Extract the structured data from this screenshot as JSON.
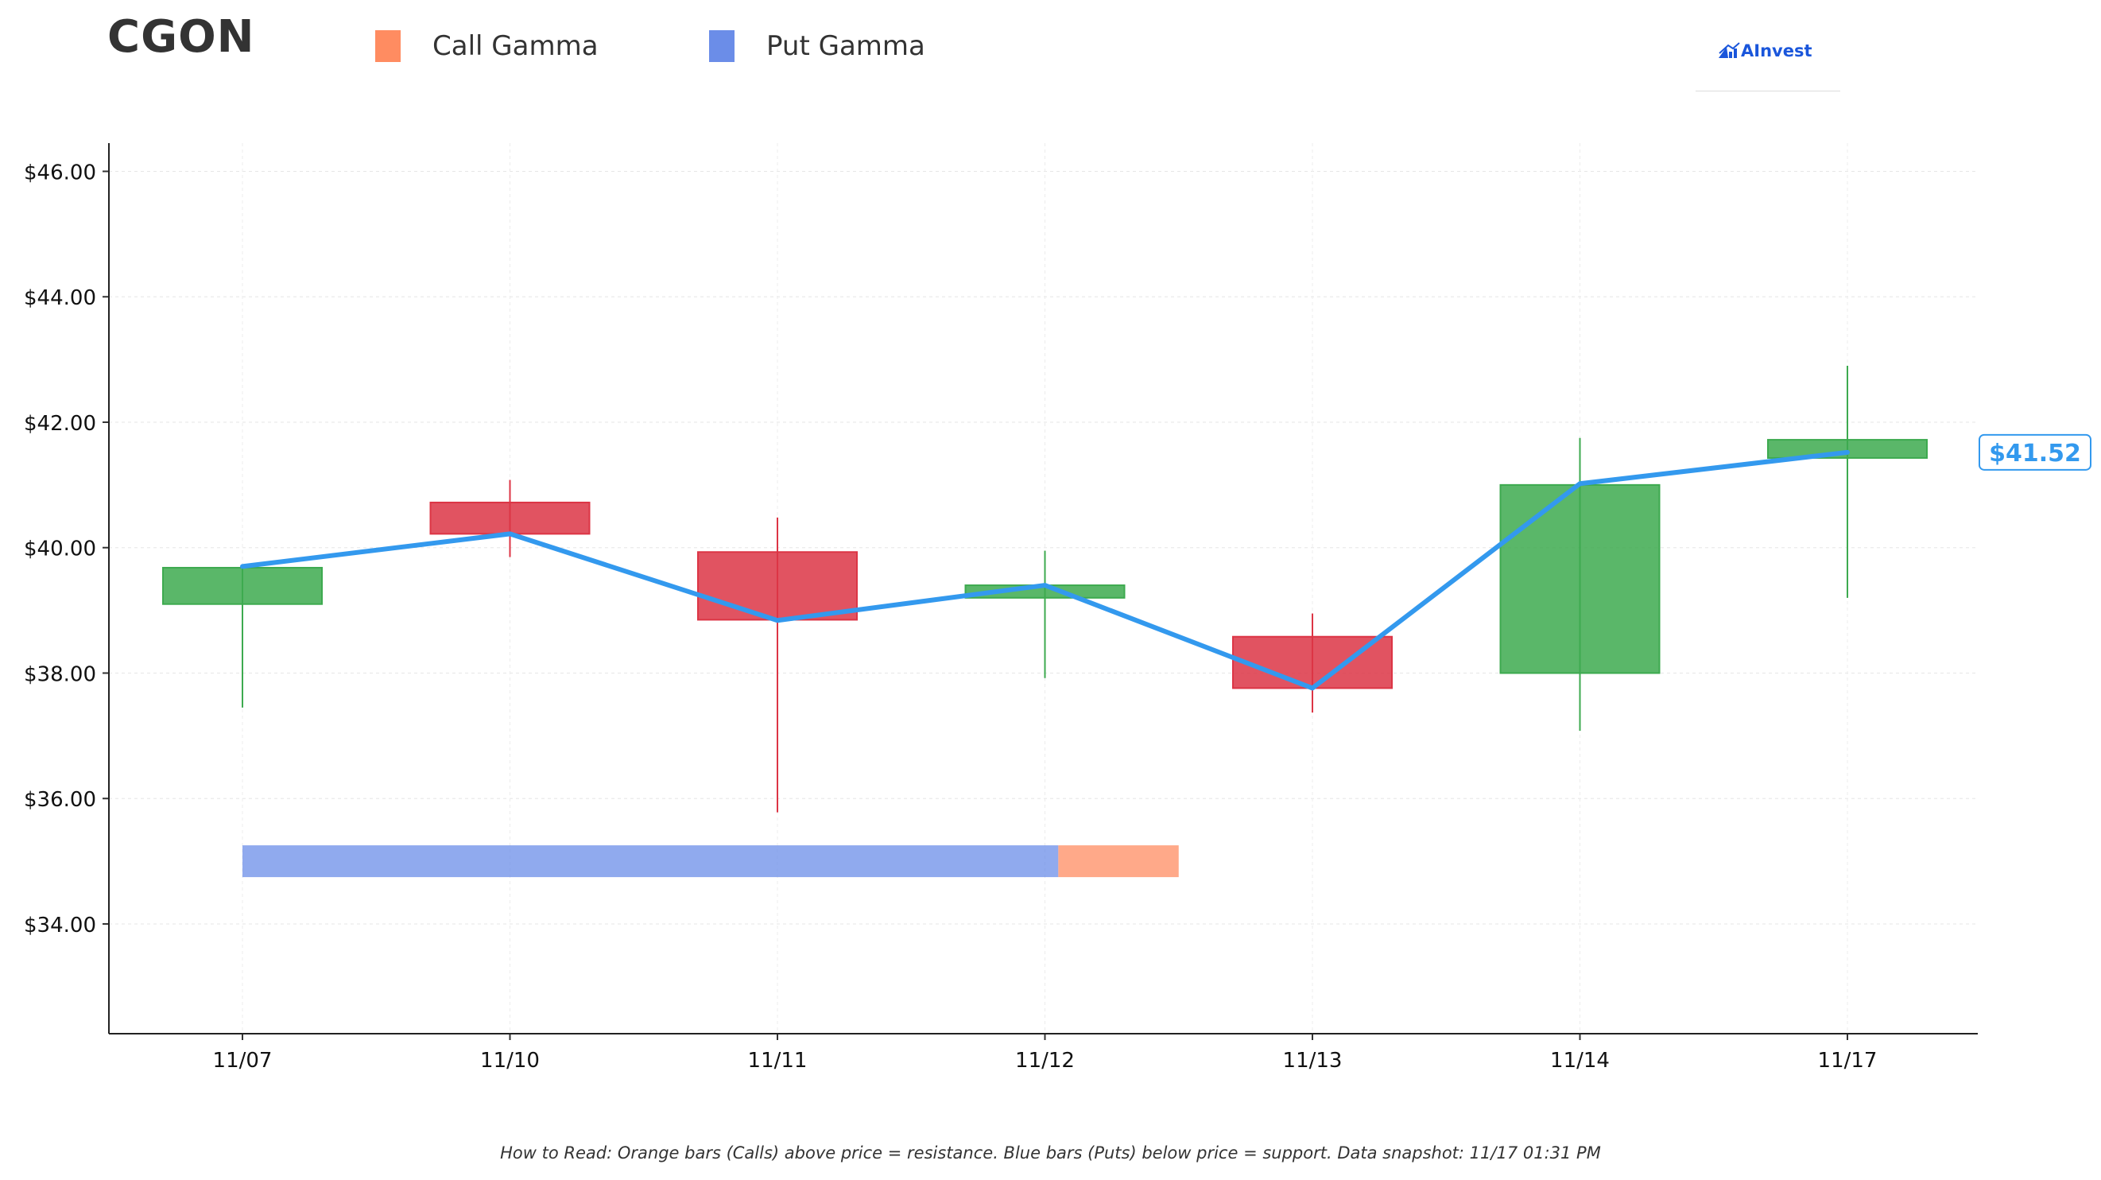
{
  "header": {
    "ticker": "CGON",
    "legend": [
      {
        "label": "Call Gamma",
        "color": "#ff8c61"
      },
      {
        "label": "Put Gamma",
        "color": "#6b8de8"
      }
    ],
    "logo_text": "AInvest"
  },
  "footnote": "How to Read: Orange bars (Calls) above price = resistance. Blue bars (Puts) below price = support. Data snapshot: 11/17 01:31 PM",
  "chart_data": {
    "type": "candlestick",
    "categories": [
      "11/07",
      "11/10",
      "11/11",
      "11/12",
      "11/13",
      "11/14",
      "11/17"
    ],
    "ohlc": [
      {
        "date": "11/07",
        "open": 39.1,
        "high": 39.7,
        "low": 37.45,
        "close": 39.68
      },
      {
        "date": "11/10",
        "open": 40.72,
        "high": 41.08,
        "low": 39.85,
        "close": 40.22
      },
      {
        "date": "11/11",
        "open": 39.93,
        "high": 40.48,
        "low": 35.78,
        "close": 38.85
      },
      {
        "date": "11/12",
        "open": 39.2,
        "high": 39.95,
        "low": 37.92,
        "close": 39.4
      },
      {
        "date": "11/13",
        "open": 38.58,
        "high": 38.95,
        "low": 37.37,
        "close": 37.76
      },
      {
        "date": "11/14",
        "open": 38.0,
        "high": 41.75,
        "low": 37.08,
        "close": 41.0
      },
      {
        "date": "11/17",
        "open": 41.43,
        "high": 42.9,
        "low": 39.2,
        "close": 41.72
      }
    ],
    "price_line": [
      39.7,
      40.22,
      38.84,
      39.4,
      37.76,
      41.02,
      41.52
    ],
    "current_price": 41.52,
    "current_price_label": "$41.52",
    "gamma_bar": {
      "price": 35.0,
      "put_gamma": 3.05,
      "call_gamma": 0.45
    },
    "yticks": [
      34,
      36,
      38,
      40,
      42,
      44,
      46
    ],
    "ytick_labels": [
      "$34.00",
      "$36.00",
      "$38.00",
      "$40.00",
      "$42.00",
      "$44.00",
      "$46.00"
    ],
    "ylim": [
      32.25,
      46.45
    ],
    "grid": true,
    "colors": {
      "up": "#3daa4f",
      "down": "#dc3545",
      "price_line": "#3399ee",
      "call": "#ff8c61",
      "put": "#6b8de8"
    }
  }
}
